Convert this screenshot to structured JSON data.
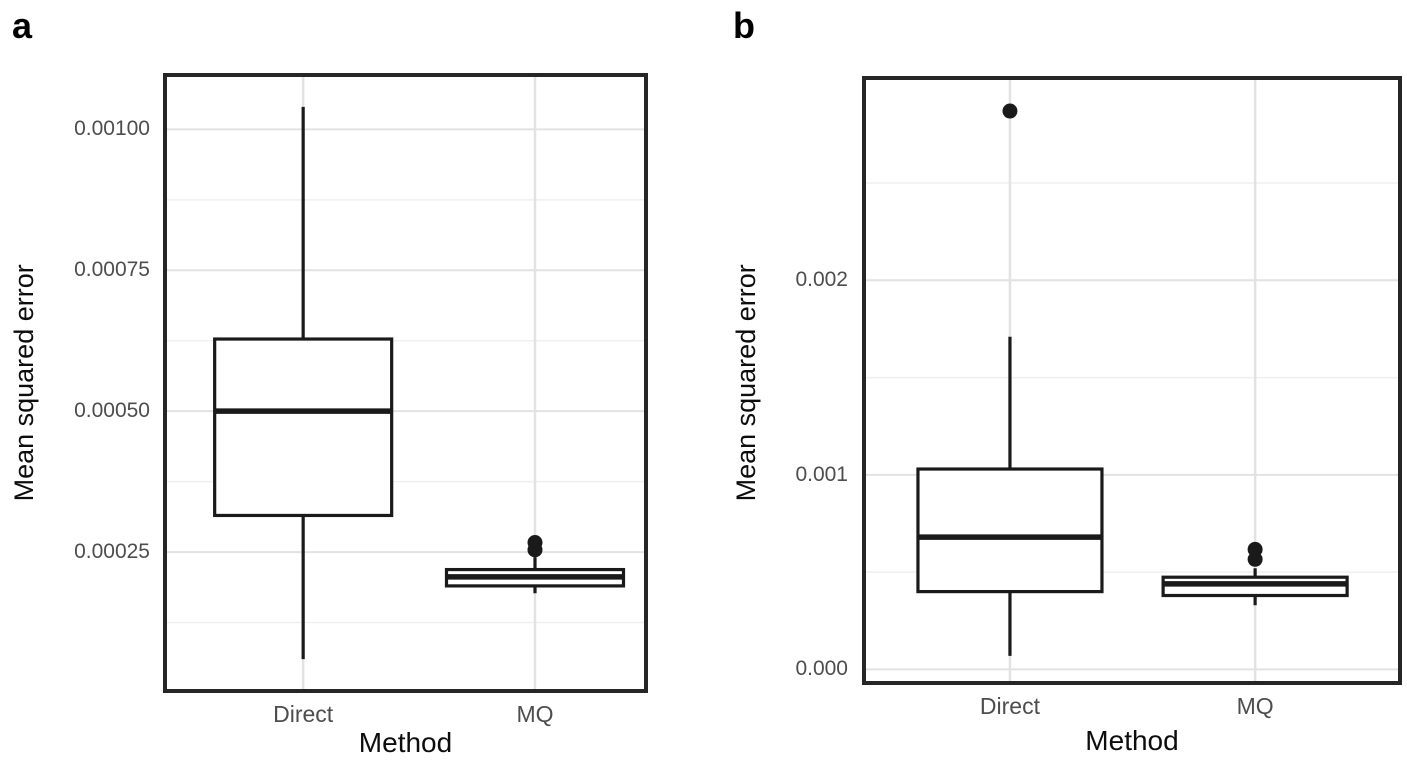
{
  "figure": {
    "background": "#ffffff",
    "description": "Two-panel boxplot figure comparing mean squared error of two methods"
  },
  "colors": {
    "box_stroke": "#1a1a1a",
    "box_fill": "#ffffff",
    "outlier_fill": "#1a1a1a",
    "panel_border": "#262626",
    "grid_major": "#e2e2e2",
    "grid_minor": "#efefef",
    "tick_label": "#4d4d4d",
    "axis_title": "#0d0d0d",
    "panel_letter": "#000000"
  },
  "chart_data": [
    {
      "panel_letter": "a",
      "type": "boxplot",
      "title": "",
      "xlabel": "Method",
      "ylabel": "Mean squared error",
      "categories": [
        "Direct",
        "MQ"
      ],
      "ylim": [
        0,
        0.0011
      ],
      "grid": true,
      "legend_position": "none",
      "yticks": [
        {
          "value": 0.00025,
          "label": "0.00025"
        },
        {
          "value": 0.0005,
          "label": "0.00050"
        },
        {
          "value": 0.00075,
          "label": "0.00075"
        },
        {
          "value": 0.001,
          "label": "0.00100"
        }
      ],
      "minor_gridlines": [
        0.000125,
        0.000375,
        0.000625,
        0.000875
      ],
      "boxes": [
        {
          "category": "Direct",
          "whisker_low": 6e-05,
          "q1": 0.000315,
          "median": 0.0005,
          "q3": 0.000628,
          "whisker_high": 0.00104,
          "outliers": []
        },
        {
          "category": "MQ",
          "whisker_low": 0.000177,
          "q1": 0.00019,
          "median": 0.000206,
          "q3": 0.000219,
          "whisker_high": 0.000241,
          "outliers": [
            0.000254,
            0.000267
          ]
        }
      ]
    },
    {
      "panel_letter": "b",
      "type": "boxplot",
      "title": "",
      "xlabel": "Method",
      "ylabel": "Mean squared error",
      "categories": [
        "Direct",
        "MQ"
      ],
      "ylim": [
        -8e-05,
        0.00305
      ],
      "grid": true,
      "legend_position": "none",
      "yticks": [
        {
          "value": 0.0,
          "label": "0.000"
        },
        {
          "value": 0.001,
          "label": "0.001"
        },
        {
          "value": 0.002,
          "label": "0.002"
        }
      ],
      "minor_gridlines": [
        0.0005,
        0.0015,
        0.0025
      ],
      "boxes": [
        {
          "category": "Direct",
          "whisker_low": 7e-05,
          "q1": 0.0004,
          "median": 0.00068,
          "q3": 0.00103,
          "whisker_high": 0.00171,
          "outliers": [
            0.00287
          ]
        },
        {
          "category": "MQ",
          "whisker_low": 0.00033,
          "q1": 0.00038,
          "median": 0.00044,
          "q3": 0.000474,
          "whisker_high": 0.00052,
          "outliers": [
            0.000566,
            0.000617
          ]
        }
      ]
    }
  ]
}
